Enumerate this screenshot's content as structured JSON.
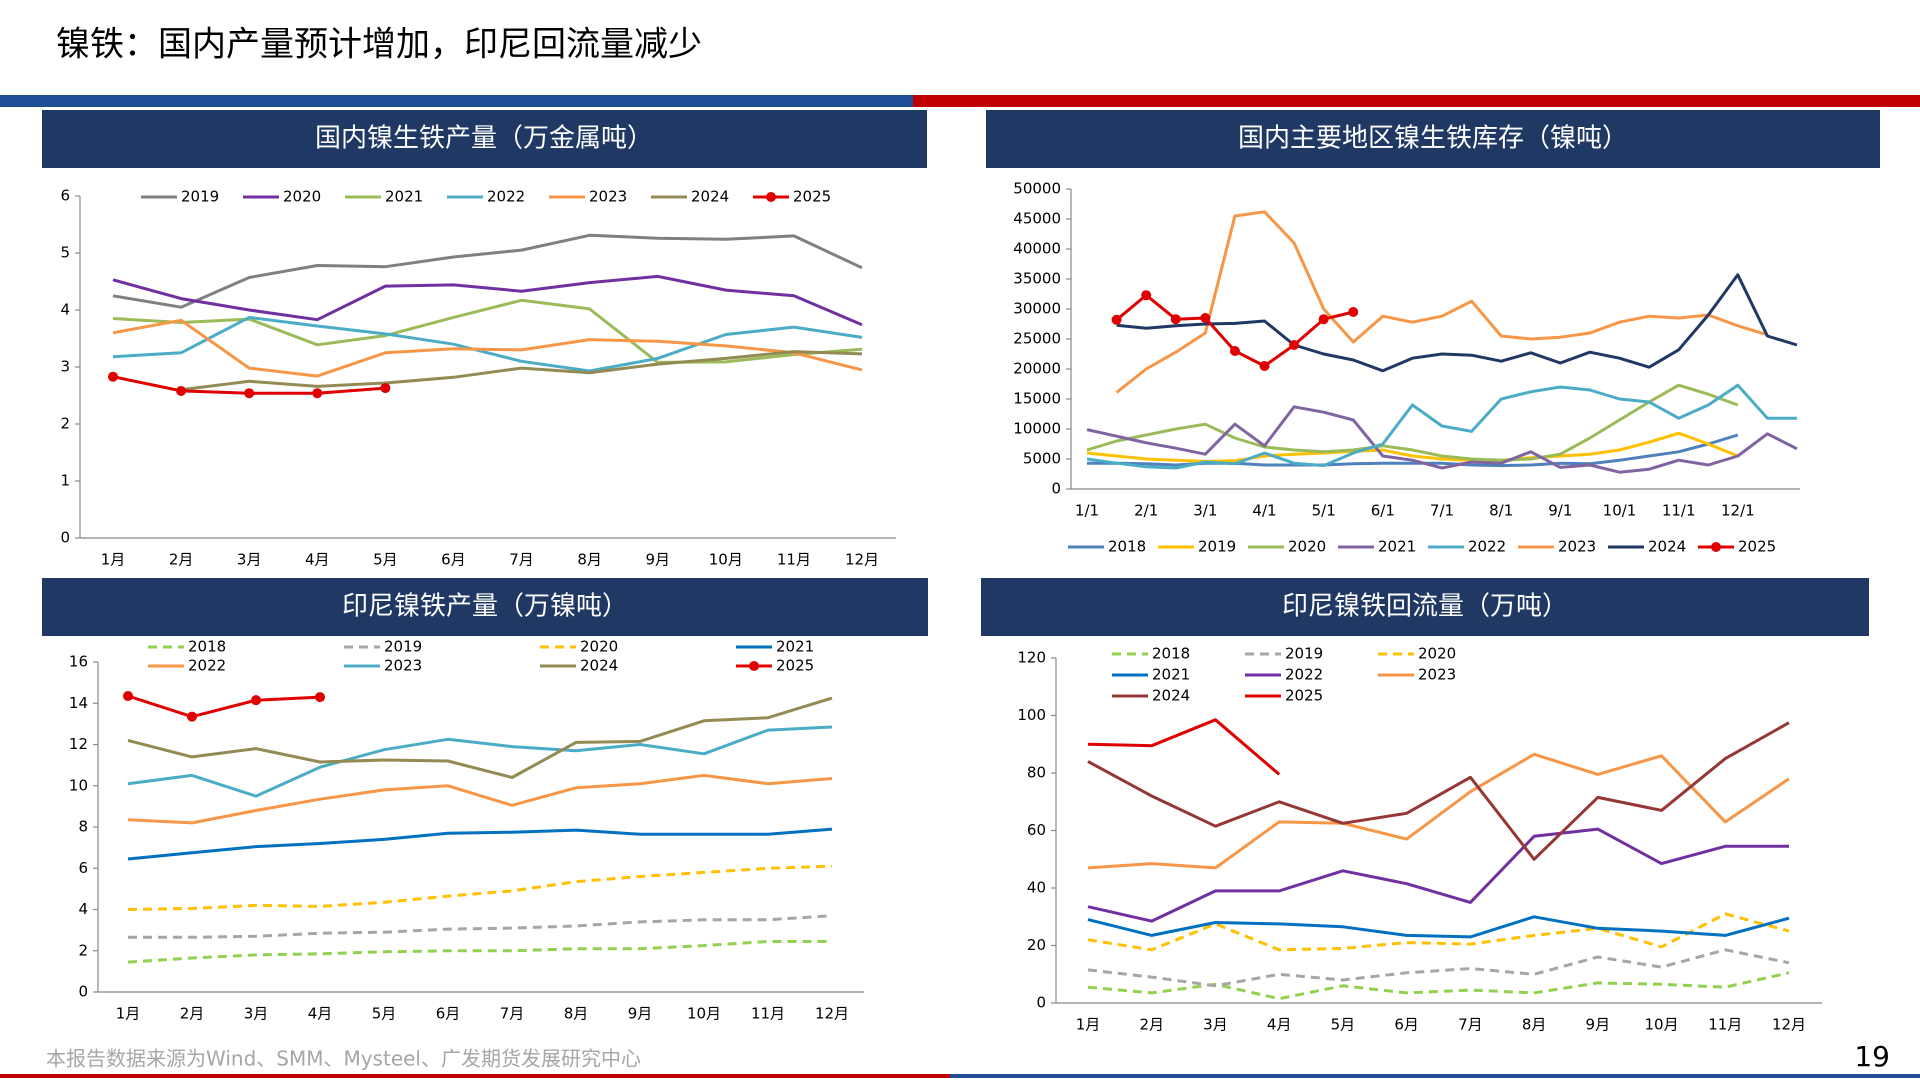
{
  "header": {
    "title": "镍铁：国内产量预计增加，印尼回流量减少"
  },
  "footer": {
    "source": "本报告数据来源为Wind、SMM、Mysteel、广发期货发展研究中心",
    "page_number": "19"
  },
  "chart_data": [
    {
      "type": "line",
      "title": "国内镍生铁产量（万金属吨）",
      "legend": "top",
      "categories": [
        "1月",
        "2月",
        "3月",
        "4月",
        "5月",
        "6月",
        "7月",
        "8月",
        "9月",
        "10月",
        "11月",
        "12月"
      ],
      "ylim": [
        0,
        6
      ],
      "yticks": [
        0,
        1,
        2,
        3,
        4,
        5,
        6
      ],
      "series": [
        {
          "name": "2019",
          "color": "#808080",
          "values": [
            4.25,
            4.05,
            4.57,
            4.78,
            4.76,
            4.93,
            5.05,
            5.31,
            5.26,
            5.24,
            5.3,
            4.74
          ]
        },
        {
          "name": "2020",
          "color": "#7030a0",
          "values": [
            4.53,
            4.2,
            4.0,
            3.83,
            4.42,
            4.44,
            4.33,
            4.48,
            4.59,
            4.35,
            4.25,
            3.74
          ]
        },
        {
          "name": "2021",
          "color": "#9bbb59",
          "values": [
            3.85,
            3.78,
            3.84,
            3.39,
            3.55,
            3.87,
            4.17,
            4.02,
            3.08,
            3.09,
            3.22,
            3.31
          ]
        },
        {
          "name": "2022",
          "color": "#4bacc6",
          "values": [
            3.18,
            3.25,
            3.87,
            3.72,
            3.58,
            3.4,
            3.1,
            2.93,
            3.15,
            3.57,
            3.7,
            3.52
          ]
        },
        {
          "name": "2023",
          "color": "#f79646",
          "values": [
            3.6,
            3.82,
            2.98,
            2.84,
            3.25,
            3.32,
            3.3,
            3.48,
            3.45,
            3.37,
            3.25,
            2.95
          ]
        },
        {
          "name": "2024",
          "color": "#948a54",
          "values": [
            null,
            2.6,
            2.75,
            2.66,
            2.72,
            2.82,
            2.98,
            2.9,
            3.05,
            3.15,
            3.27,
            3.23
          ]
        },
        {
          "name": "2025",
          "color": "#e00000",
          "markers": true,
          "values": [
            2.83,
            2.58,
            2.54,
            2.54,
            2.63,
            null,
            null,
            null,
            null,
            null,
            null,
            null
          ]
        }
      ]
    },
    {
      "type": "line",
      "title": "国内主要地区镍生铁库存（镍吨）",
      "legend": "bottom",
      "categories": [
        "1/1",
        null,
        "2/1",
        null,
        "3/1",
        null,
        "4/1",
        null,
        "5/1",
        null,
        "6/1",
        null,
        "7/1",
        null,
        "8/1",
        null,
        "9/1",
        null,
        "10/1",
        null,
        "11/1",
        null,
        "12/1",
        null,
        null
      ],
      "ylim": [
        0,
        50000
      ],
      "yticks": [
        0,
        5000,
        10000,
        15000,
        20000,
        25000,
        30000,
        35000,
        40000,
        45000,
        50000
      ],
      "series": [
        {
          "name": "2018",
          "color": "#4f81bd",
          "values": [
            4300,
            4300,
            4200,
            4000,
            4300,
            4300,
            4000,
            4000,
            4000,
            4200,
            4300,
            4300,
            4300,
            4000,
            3900,
            4000,
            4300,
            4200,
            4800,
            5500,
            6200,
            7500,
            9000,
            null,
            null
          ]
        },
        {
          "name": "2019",
          "color": "#ffc000",
          "values": [
            6000,
            5500,
            5000,
            4800,
            4600,
            4700,
            5500,
            5800,
            6000,
            6300,
            6500,
            5500,
            5000,
            4800,
            4800,
            5200,
            5500,
            5800,
            6500,
            7800,
            9300,
            7500,
            5500,
            null,
            null
          ]
        },
        {
          "name": "2020",
          "color": "#9bbb59",
          "values": [
            6500,
            8000,
            9000,
            10000,
            10800,
            8500,
            7000,
            6500,
            6200,
            6500,
            7200,
            6500,
            5500,
            5000,
            4800,
            5000,
            5800,
            8500,
            11500,
            14500,
            17300,
            15800,
            14000,
            null,
            null
          ]
        },
        {
          "name": "2021",
          "color": "#8064a2",
          "values": [
            9900,
            8800,
            7700,
            6800,
            5800,
            10800,
            7200,
            13700,
            12800,
            11500,
            5500,
            4800,
            3500,
            4500,
            4300,
            6200,
            3600,
            4000,
            2800,
            3300,
            4800,
            4000,
            5500,
            9200,
            6700
          ]
        },
        {
          "name": "2022",
          "color": "#4bacc6",
          "values": [
            5000,
            4300,
            3700,
            3500,
            4500,
            4200,
            6000,
            4300,
            3900,
            6000,
            7500,
            14000,
            10500,
            9600,
            15000,
            16200,
            17000,
            16500,
            15000,
            14500,
            11800,
            14000,
            17300,
            11800,
            11800
          ]
        },
        {
          "name": "2023",
          "color": "#f79646",
          "values": [
            null,
            16100,
            20000,
            22800,
            26000,
            45500,
            46200,
            41000,
            30000,
            24500,
            28800,
            27800,
            28800,
            31300,
            25500,
            25000,
            25300,
            26000,
            27800,
            28800,
            28500,
            29000,
            27200,
            25700,
            null
          ]
        },
        {
          "name": "2024",
          "color": "#1f3864",
          "values": [
            null,
            27300,
            26800,
            27200,
            27500,
            27600,
            28000,
            24000,
            22500,
            21500,
            19700,
            21800,
            22500,
            22300,
            21300,
            22700,
            21000,
            22800,
            21800,
            20300,
            23200,
            29000,
            35700,
            25500,
            24000
          ]
        },
        {
          "name": "2025",
          "color": "#e00000",
          "markers": true,
          "values": [
            null,
            28200,
            32300,
            28300,
            28500,
            23000,
            20500,
            24000,
            28300,
            29500,
            null,
            null,
            null,
            null,
            null,
            null,
            null,
            null,
            null,
            null,
            null,
            null,
            null,
            null,
            null
          ]
        }
      ]
    },
    {
      "type": "line",
      "title": "印尼镍铁产量（万镍吨）",
      "legend": "top",
      "categories": [
        "1月",
        "2月",
        "3月",
        "4月",
        "5月",
        "6月",
        "7月",
        "8月",
        "9月",
        "10月",
        "11月",
        "12月"
      ],
      "ylim": [
        0,
        16
      ],
      "yticks": [
        0,
        2,
        4,
        6,
        8,
        10,
        12,
        14,
        16
      ],
      "series": [
        {
          "name": "2018",
          "color": "#92d050",
          "dash": true,
          "values": [
            1.45,
            1.65,
            1.8,
            1.85,
            1.95,
            2.0,
            2.0,
            2.1,
            2.1,
            2.25,
            2.45,
            2.45
          ]
        },
        {
          "name": "2019",
          "color": "#a6a6a6",
          "dash": true,
          "values": [
            2.65,
            2.65,
            2.7,
            2.85,
            2.9,
            3.05,
            3.1,
            3.2,
            3.4,
            3.5,
            3.5,
            3.7
          ]
        },
        {
          "name": "2020",
          "color": "#ffc000",
          "dash": true,
          "values": [
            4.0,
            4.05,
            4.2,
            4.15,
            4.35,
            4.65,
            4.9,
            5.35,
            5.6,
            5.8,
            6.0,
            6.1
          ]
        },
        {
          "name": "2021",
          "color": "#0070c0",
          "values": [
            6.45,
            6.75,
            7.05,
            7.2,
            7.4,
            7.7,
            7.75,
            7.85,
            7.65,
            7.65,
            7.65,
            7.9
          ]
        },
        {
          "name": "2022",
          "color": "#f79646",
          "values": [
            8.35,
            8.2,
            8.8,
            9.35,
            9.8,
            10.0,
            9.05,
            9.9,
            10.1,
            10.5,
            10.1,
            10.35
          ]
        },
        {
          "name": "2023",
          "color": "#4bacc6",
          "values": [
            10.1,
            10.5,
            9.5,
            10.9,
            11.75,
            12.25,
            11.9,
            11.7,
            12.0,
            11.55,
            12.7,
            12.85
          ]
        },
        {
          "name": "2024",
          "color": "#948a54",
          "values": [
            12.2,
            11.4,
            11.8,
            11.15,
            11.25,
            11.2,
            10.4,
            12.1,
            12.15,
            13.15,
            13.3,
            14.25
          ]
        },
        {
          "name": "2025",
          "color": "#e00000",
          "markers": true,
          "values": [
            14.35,
            13.35,
            14.15,
            14.3,
            null,
            null,
            null,
            null,
            null,
            null,
            null,
            null
          ]
        }
      ]
    },
    {
      "type": "line",
      "title": "印尼镍铁回流量（万吨）",
      "legend": "top",
      "categories": [
        "1月",
        "2月",
        "3月",
        "4月",
        "5月",
        "6月",
        "7月",
        "8月",
        "9月",
        "10月",
        "11月",
        "12月"
      ],
      "ylim": [
        0,
        120
      ],
      "yticks": [
        0,
        20,
        40,
        60,
        80,
        100,
        120
      ],
      "series": [
        {
          "name": "2018",
          "color": "#92d050",
          "dash": true,
          "values": [
            5.5,
            3.5,
            6.5,
            1.5,
            6,
            3.5,
            4.5,
            3.5,
            7,
            6.5,
            5.5,
            10.5
          ]
        },
        {
          "name": "2019",
          "color": "#a6a6a6",
          "dash": true,
          "values": [
            11.5,
            9,
            6,
            10,
            8,
            10.5,
            12,
            10,
            16,
            12.5,
            18.5,
            14
          ]
        },
        {
          "name": "2020",
          "color": "#ffc000",
          "dash": true,
          "values": [
            22,
            18.5,
            27.5,
            18.5,
            19,
            21,
            20.5,
            23.5,
            26,
            19.5,
            31,
            25
          ]
        },
        {
          "name": "2021",
          "color": "#0070c0",
          "values": [
            29,
            23.5,
            28,
            27.5,
            26.5,
            23.5,
            23,
            30,
            26,
            25,
            23.5,
            29.5
          ]
        },
        {
          "name": "2022",
          "color": "#7030a0",
          "values": [
            33.5,
            28.5,
            39,
            39,
            46,
            41.5,
            35,
            58,
            60.5,
            48.5,
            54.5,
            54.5
          ]
        },
        {
          "name": "2023",
          "color": "#f79646",
          "values": [
            47,
            48.5,
            47,
            63,
            62.5,
            57,
            73.5,
            86.5,
            79.5,
            86,
            63,
            78
          ]
        },
        {
          "name": "2024",
          "color": "#953735",
          "values": [
            84,
            72,
            61.5,
            70,
            62.5,
            66,
            78.5,
            50,
            71.5,
            67,
            85,
            97.5
          ]
        },
        {
          "name": "2025",
          "color": "#e00000",
          "values": [
            90,
            89.5,
            98.5,
            79.5,
            null,
            null,
            null,
            null,
            null,
            null,
            null,
            null
          ]
        }
      ]
    }
  ]
}
